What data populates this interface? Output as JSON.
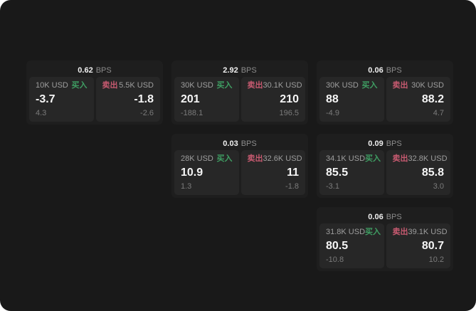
{
  "labels": {
    "bps_unit": "BPS",
    "buy": "买入",
    "sell": "卖出"
  },
  "colors": {
    "surface": "#191919",
    "card": "#1e1e1e",
    "panel": "#272727",
    "buy_green": "#3f9e63",
    "sell_red": "#c75a70"
  },
  "cards": [
    {
      "bps": "0.62",
      "grid": {
        "row": 1,
        "col": 1
      },
      "buy": {
        "amount": "10K USD",
        "value": "-3.7",
        "sub": "4.3"
      },
      "sell": {
        "amount": "5.5K USD",
        "value": "-1.8",
        "sub": "-2.6"
      }
    },
    {
      "bps": "2.92",
      "grid": {
        "row": 1,
        "col": 2
      },
      "buy": {
        "amount": "30K USD",
        "value": "201",
        "sub": "-188.1"
      },
      "sell": {
        "amount": "30.1K USD",
        "value": "210",
        "sub": "196.5"
      }
    },
    {
      "bps": "0.06",
      "grid": {
        "row": 1,
        "col": 3
      },
      "buy": {
        "amount": "30K USD",
        "value": "88",
        "sub": "-4.9"
      },
      "sell": {
        "amount": "30K USD",
        "value": "88.2",
        "sub": "4.7"
      }
    },
    {
      "bps": "0.03",
      "grid": {
        "row": 2,
        "col": 2
      },
      "buy": {
        "amount": "28K USD",
        "value": "10.9",
        "sub": "1.3"
      },
      "sell": {
        "amount": "32.6K USD",
        "value": "11",
        "sub": "-1.8"
      }
    },
    {
      "bps": "0.09",
      "grid": {
        "row": 2,
        "col": 3
      },
      "buy": {
        "amount": "34.1K USD",
        "value": "85.5",
        "sub": "-3.1"
      },
      "sell": {
        "amount": "32.8K USD",
        "value": "85.8",
        "sub": "3.0"
      }
    },
    {
      "bps": "0.06",
      "grid": {
        "row": 3,
        "col": 3
      },
      "buy": {
        "amount": "31.8K USD",
        "value": "80.5",
        "sub": "-10.8"
      },
      "sell": {
        "amount": "39.1K USD",
        "value": "80.7",
        "sub": "10.2"
      }
    }
  ]
}
